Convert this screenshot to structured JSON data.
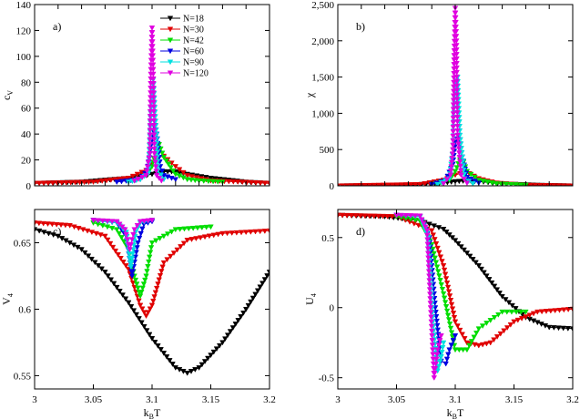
{
  "figure": {
    "xlabel": "kBT",
    "xlabel_main": "k",
    "xlabel_sub": "B",
    "xlabel_tail": "T"
  },
  "legend": [
    {
      "name": "N=18",
      "color": "#000000"
    },
    {
      "name": "N=30",
      "color": "#e00000"
    },
    {
      "name": "N=42",
      "color": "#00dd00"
    },
    {
      "name": "N=60",
      "color": "#0000e0"
    },
    {
      "name": "N=90",
      "color": "#00e0e0"
    },
    {
      "name": "N=120",
      "color": "#e000e0"
    }
  ],
  "chart_data": [
    {
      "panel": "a)",
      "type": "line",
      "ylabel": "cV",
      "ylabel_main": "c",
      "ylabel_sub": "V",
      "xlim": [
        2.0,
        4.0
      ],
      "ylim": [
        0,
        140
      ],
      "yticks": [
        0,
        20,
        40,
        60,
        80,
        100,
        120,
        140
      ],
      "ytick_labels": [
        "0",
        "20",
        "40",
        "60",
        "80",
        "100",
        "120",
        "140"
      ],
      "series": [
        {
          "name": "N=18",
          "color": "#000000",
          "x": [
            2.0,
            2.4,
            2.8,
            3.0,
            3.1,
            3.2,
            3.3,
            3.5,
            3.8,
            4.0
          ],
          "y": [
            2,
            3,
            6,
            9,
            11,
            11,
            9,
            6,
            3,
            2
          ]
        },
        {
          "name": "N=30",
          "color": "#e00000",
          "x": [
            2.0,
            2.5,
            2.8,
            2.95,
            3.05,
            3.1,
            3.2,
            3.3,
            3.5,
            4.0
          ],
          "y": [
            2,
            3,
            6,
            12,
            22,
            23,
            15,
            8,
            4,
            2
          ]
        },
        {
          "name": "N=42",
          "color": "#00dd00",
          "x": [
            2.85,
            2.95,
            3.0,
            3.03,
            3.06,
            3.1,
            3.2,
            3.3,
            3.4,
            3.6
          ],
          "y": [
            4,
            8,
            15,
            28,
            32,
            22,
            9,
            5,
            4,
            3
          ]
        },
        {
          "name": "N=60",
          "color": "#0000e0",
          "x": [
            2.7,
            2.9,
            2.96,
            3.0,
            3.02,
            3.04,
            3.07,
            3.1,
            3.2
          ],
          "y": [
            3,
            5,
            12,
            35,
            50,
            40,
            15,
            8,
            5
          ]
        },
        {
          "name": "N=90",
          "color": "#00e0e0",
          "x": [
            2.8,
            2.9,
            2.97,
            2.99,
            3.01,
            3.03,
            3.05,
            3.1
          ],
          "y": [
            3,
            5,
            10,
            60,
            82,
            50,
            12,
            5
          ]
        },
        {
          "name": "N=120",
          "color": "#e000e0",
          "x": [
            2.85,
            2.95,
            2.98,
            2.99,
            3.0,
            3.01,
            3.02,
            3.04,
            3.08
          ],
          "y": [
            4,
            8,
            25,
            90,
            122,
            90,
            25,
            8,
            4
          ]
        }
      ]
    },
    {
      "panel": "b)",
      "type": "line",
      "ylabel": "χ",
      "ylabel_main": "χ",
      "ylabel_sub": "",
      "xlim": [
        2.0,
        4.0
      ],
      "ylim": [
        0,
        2500
      ],
      "yticks": [
        0,
        500,
        1000,
        1500,
        2000,
        2500
      ],
      "ytick_labels": [
        "0",
        "500",
        "1,000",
        "1,500",
        "2,000",
        "2,500"
      ],
      "series": [
        {
          "name": "N=18",
          "color": "#000000",
          "x": [
            2.0,
            2.6,
            2.9,
            3.0,
            3.1,
            3.2,
            3.4,
            3.7,
            4.0
          ],
          "y": [
            0,
            10,
            40,
            60,
            70,
            60,
            30,
            10,
            0
          ]
        },
        {
          "name": "N=30",
          "color": "#e00000",
          "x": [
            2.0,
            2.7,
            2.9,
            3.0,
            3.08,
            3.12,
            3.2,
            3.35,
            3.6,
            4.0
          ],
          "y": [
            0,
            20,
            80,
            150,
            190,
            170,
            100,
            40,
            10,
            0
          ]
        },
        {
          "name": "N=42",
          "color": "#00dd00",
          "x": [
            2.8,
            2.95,
            3.0,
            3.04,
            3.07,
            3.1,
            3.2,
            3.35,
            3.6
          ],
          "y": [
            20,
            80,
            200,
            360,
            330,
            200,
            80,
            30,
            10
          ]
        },
        {
          "name": "N=60",
          "color": "#0000e0",
          "x": [
            2.8,
            2.92,
            2.98,
            3.0,
            3.03,
            3.06,
            3.1,
            3.2
          ],
          "y": [
            20,
            80,
            300,
            600,
            700,
            400,
            120,
            40
          ]
        },
        {
          "name": "N=90",
          "color": "#00e0e0",
          "x": [
            2.85,
            2.95,
            2.98,
            3.0,
            3.02,
            3.04,
            3.08,
            3.15
          ],
          "y": [
            20,
            100,
            500,
            1400,
            1500,
            700,
            100,
            30
          ]
        },
        {
          "name": "N=120",
          "color": "#e000e0",
          "x": [
            2.9,
            2.96,
            2.98,
            2.99,
            3.0,
            3.01,
            3.02,
            3.05,
            3.1
          ],
          "y": [
            30,
            150,
            500,
            1800,
            2450,
            2000,
            700,
            150,
            40
          ]
        }
      ]
    },
    {
      "panel": "c)",
      "type": "line",
      "ylabel": "V4",
      "ylabel_main": "V",
      "ylabel_sub": "4",
      "xlim": [
        3.0,
        3.2
      ],
      "ylim": [
        0.54,
        0.675
      ],
      "yticks": [
        0.55,
        0.6,
        0.65
      ],
      "ytick_labels": [
        "0.55",
        "0.6",
        "0.65"
      ],
      "series": [
        {
          "name": "N=18",
          "color": "#000000",
          "x": [
            3.0,
            3.02,
            3.04,
            3.06,
            3.08,
            3.1,
            3.12,
            3.13,
            3.14,
            3.16,
            3.18,
            3.2
          ],
          "y": [
            0.66,
            0.655,
            0.645,
            0.628,
            0.605,
            0.578,
            0.556,
            0.552,
            0.556,
            0.575,
            0.6,
            0.628
          ]
        },
        {
          "name": "N=30",
          "color": "#e00000",
          "x": [
            3.0,
            3.03,
            3.06,
            3.08,
            3.09,
            3.095,
            3.1,
            3.11,
            3.13,
            3.16,
            3.2
          ],
          "y": [
            0.665,
            0.663,
            0.655,
            0.63,
            0.603,
            0.595,
            0.603,
            0.635,
            0.652,
            0.657,
            0.659
          ]
        },
        {
          "name": "N=42",
          "color": "#00dd00",
          "x": [
            3.05,
            3.07,
            3.08,
            3.085,
            3.09,
            3.095,
            3.1,
            3.12,
            3.15
          ],
          "y": [
            0.665,
            0.66,
            0.645,
            0.625,
            0.61,
            0.625,
            0.65,
            0.66,
            0.662
          ]
        },
        {
          "name": "N=60",
          "color": "#0000e0",
          "x": [
            3.05,
            3.07,
            3.078,
            3.083,
            3.088,
            3.093,
            3.1
          ],
          "y": [
            0.667,
            0.665,
            0.655,
            0.625,
            0.65,
            0.664,
            0.666
          ]
        },
        {
          "name": "N=90",
          "color": "#00e0e0",
          "x": [
            3.05,
            3.07,
            3.078,
            3.082,
            3.086,
            3.09,
            3.1
          ],
          "y": [
            0.667,
            0.665,
            0.658,
            0.632,
            0.658,
            0.665,
            0.667
          ]
        },
        {
          "name": "N=120",
          "color": "#e000e0",
          "x": [
            3.05,
            3.07,
            3.077,
            3.081,
            3.085,
            3.09,
            3.1
          ],
          "y": [
            0.667,
            0.666,
            0.66,
            0.645,
            0.66,
            0.666,
            0.667
          ]
        }
      ]
    },
    {
      "panel": "d)",
      "type": "line",
      "ylabel": "U4",
      "ylabel_main": "U",
      "ylabel_sub": "4",
      "xlim": [
        3.0,
        3.2
      ],
      "ylim": [
        -0.58,
        0.7
      ],
      "yticks": [
        -0.5,
        0,
        0.5
      ],
      "ytick_labels": [
        "-0.5",
        "0",
        "0.5"
      ],
      "series": [
        {
          "name": "N=18",
          "color": "#000000",
          "x": [
            3.0,
            3.04,
            3.07,
            3.09,
            3.1,
            3.12,
            3.14,
            3.16,
            3.18,
            3.2
          ],
          "y": [
            0.66,
            0.65,
            0.62,
            0.56,
            0.48,
            0.3,
            0.08,
            -0.07,
            -0.14,
            -0.15
          ]
        },
        {
          "name": "N=30",
          "color": "#e00000",
          "x": [
            3.0,
            3.05,
            3.08,
            3.09,
            3.1,
            3.11,
            3.12,
            3.13,
            3.15,
            3.17,
            3.2
          ],
          "y": [
            0.66,
            0.65,
            0.55,
            0.3,
            -0.1,
            -0.25,
            -0.27,
            -0.25,
            -0.1,
            -0.03,
            -0.01
          ]
        },
        {
          "name": "N=42",
          "color": "#00dd00",
          "x": [
            3.05,
            3.07,
            3.08,
            3.09,
            3.1,
            3.11,
            3.12,
            3.14,
            3.16
          ],
          "y": [
            0.65,
            0.62,
            0.45,
            0.1,
            -0.3,
            -0.3,
            -0.15,
            -0.03,
            -0.03
          ]
        },
        {
          "name": "N=60",
          "color": "#0000e0",
          "x": [
            3.05,
            3.07,
            3.078,
            3.083,
            3.088,
            3.092,
            3.095,
            3.1
          ],
          "y": [
            0.66,
            0.65,
            0.5,
            0.0,
            -0.38,
            -0.4,
            -0.3,
            -0.2
          ]
        },
        {
          "name": "N=90",
          "color": "#00e0e0",
          "x": [
            3.05,
            3.07,
            3.077,
            3.081,
            3.085,
            3.088,
            3.09
          ],
          "y": [
            0.66,
            0.65,
            0.5,
            -0.1,
            -0.45,
            -0.35,
            -0.25
          ]
        },
        {
          "name": "N=120",
          "color": "#e000e0",
          "x": [
            3.05,
            3.07,
            3.076,
            3.079,
            3.082,
            3.085,
            3.088
          ],
          "y": [
            0.66,
            0.655,
            0.55,
            0.0,
            -0.5,
            -0.3,
            -0.2
          ]
        }
      ]
    }
  ],
  "x_axes": {
    "top": {
      "ticks": [],
      "tick_labels": []
    },
    "bottom": {
      "ticks": [
        3.0,
        3.05,
        3.1,
        3.15,
        3.2
      ],
      "tick_labels": [
        "3",
        "3.05",
        "3.1",
        "3.15",
        "3.2"
      ]
    }
  }
}
